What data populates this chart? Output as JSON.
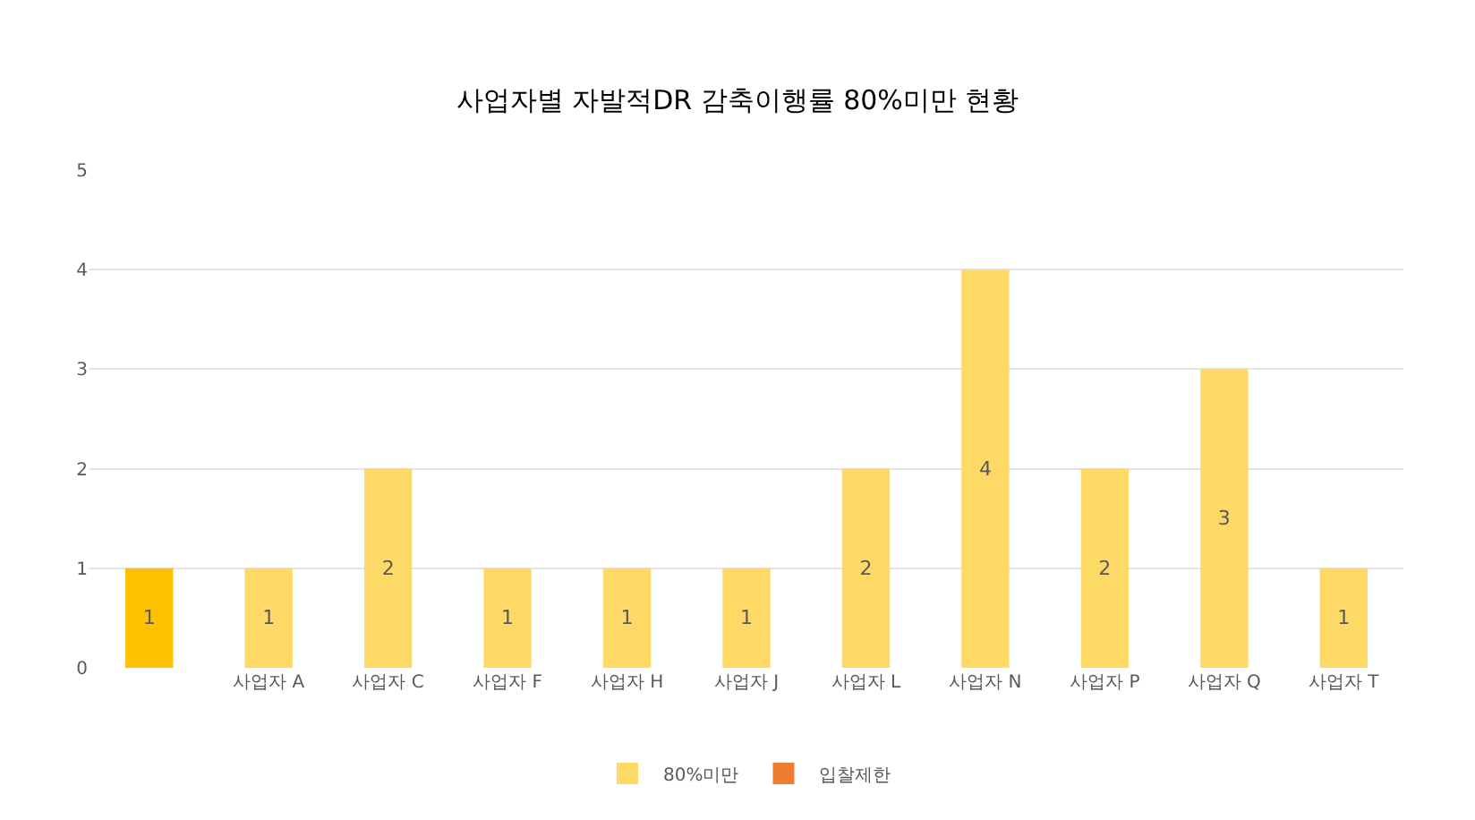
{
  "chart_data": {
    "type": "bar",
    "title": "사업자별 자발적DR 감축이행률 80%미만 현황",
    "categories": [
      null,
      "사업자 A",
      "사업자 C",
      "사업자 F",
      "사업자 H",
      "사업자 J",
      "사업자 L",
      "사업자 N",
      "사업자 P",
      "사업자 Q",
      "사업자 T"
    ],
    "series": [
      {
        "name": "80%미만",
        "color": "#ffd966",
        "colors": [
          "#ffc000",
          "#ffd966",
          "#ffd966",
          "#ffd966",
          "#ffd966",
          "#ffd966",
          "#ffd966",
          "#ffd966",
          "#ffd966",
          "#ffd966",
          "#ffd966"
        ],
        "values": [
          1,
          1,
          2,
          1,
          1,
          1,
          2,
          4,
          2,
          3,
          1
        ]
      },
      {
        "name": "입찰제한",
        "color": "#ed7d31",
        "values": [
          null,
          null,
          null,
          null,
          null,
          null,
          null,
          null,
          null,
          null,
          null
        ]
      }
    ],
    "ylim": [
      0,
      5
    ],
    "yticks": [
      0,
      1,
      2,
      3,
      4,
      5
    ],
    "grid": "y",
    "legend": "bottom",
    "data_labels": true
  }
}
